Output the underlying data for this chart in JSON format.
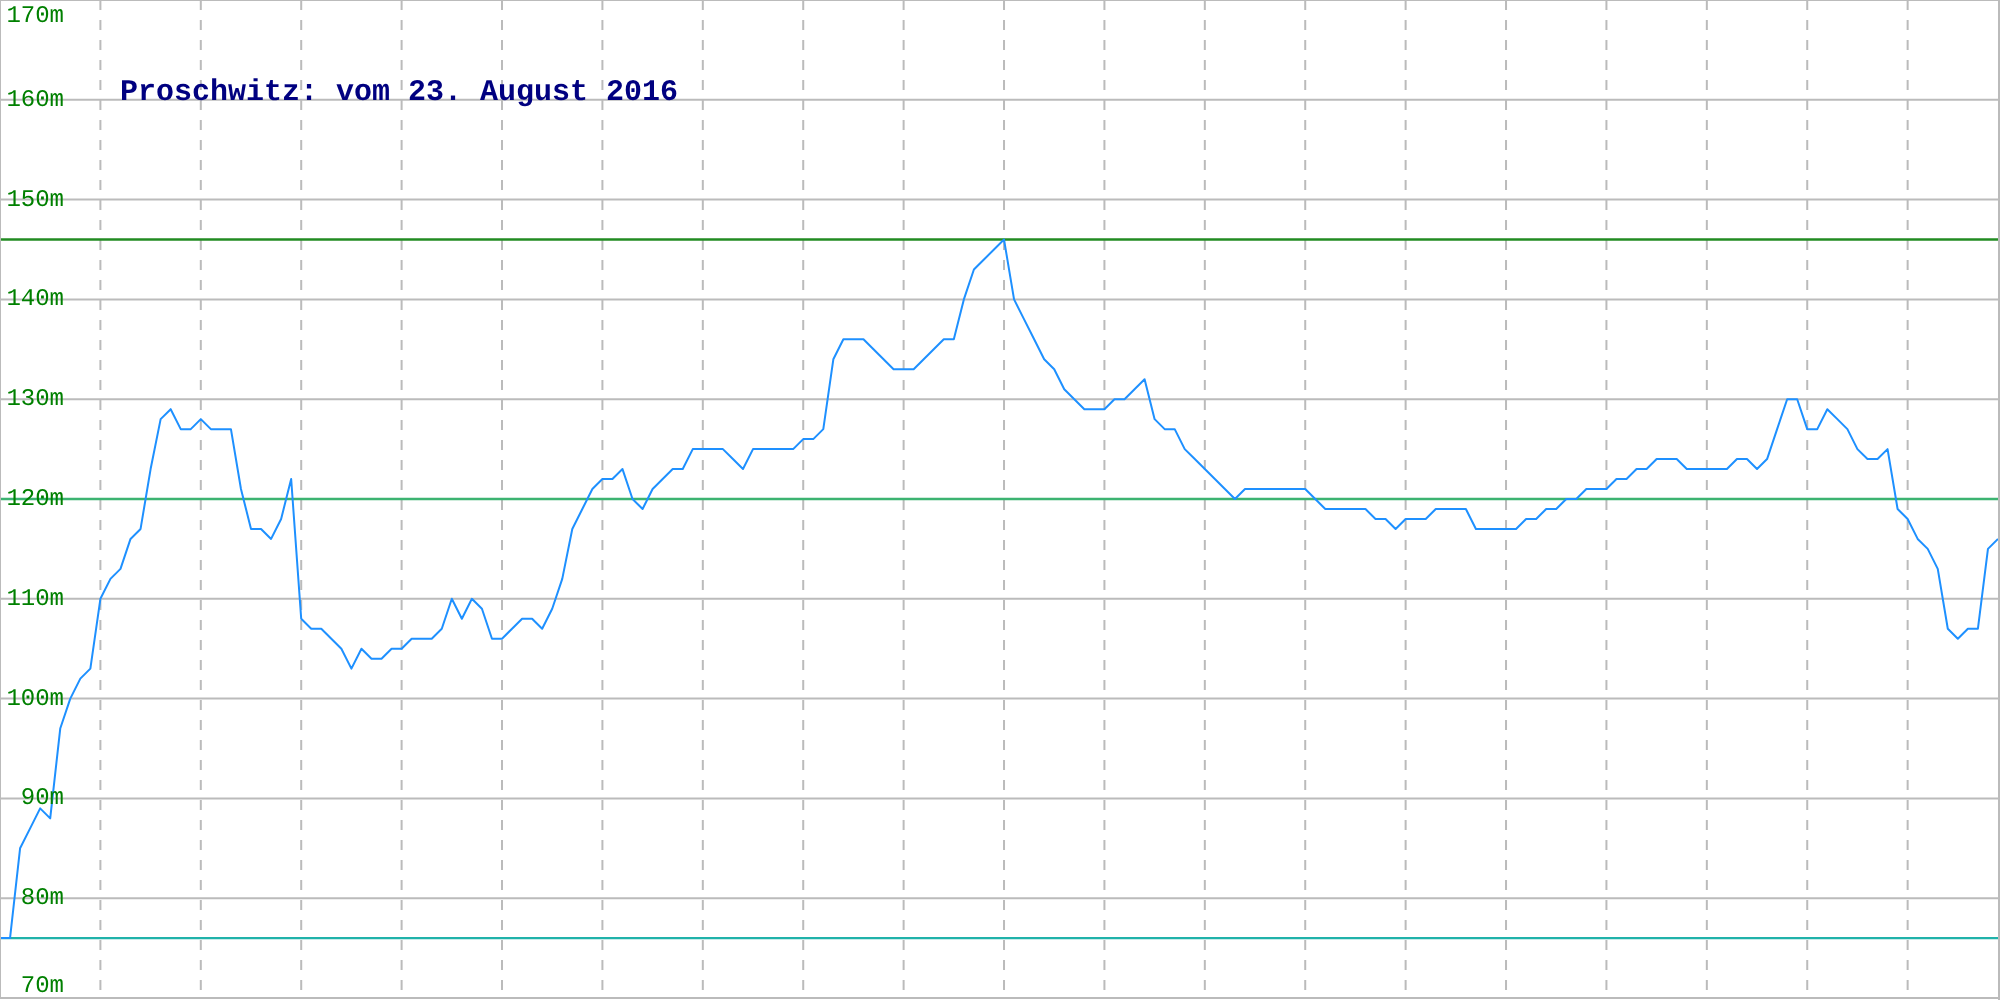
{
  "chart_data": {
    "type": "line",
    "title": "Proschwitz: vom 23. August 2016",
    "categories": [
      null,
      null,
      null,
      null,
      null,
      null,
      null,
      null,
      null,
      null,
      null,
      null,
      null,
      null,
      null,
      null,
      null,
      null,
      null,
      null,
      null,
      null,
      null,
      null,
      null,
      null,
      null,
      null,
      null,
      null,
      null,
      null,
      null,
      null,
      null,
      null,
      null,
      null,
      null,
      null,
      null,
      null,
      null,
      null,
      null,
      null,
      null,
      null,
      null,
      null,
      null,
      null,
      null,
      null,
      null,
      null,
      null,
      null,
      null,
      null,
      null,
      null,
      null,
      null,
      null,
      null,
      null,
      null,
      null,
      null,
      null,
      null,
      null,
      null,
      null,
      null,
      null,
      null,
      null,
      null,
      null,
      null,
      null,
      null,
      null,
      null,
      null,
      null,
      null,
      null,
      null,
      null,
      null,
      null,
      null,
      null,
      null,
      null,
      null,
      null,
      null,
      null,
      null,
      null,
      null,
      null,
      null,
      null,
      null,
      null,
      null,
      null,
      null,
      null,
      null,
      null,
      null,
      null,
      null,
      null,
      null,
      null,
      null,
      null,
      null,
      null,
      null,
      null,
      null,
      null,
      null,
      null,
      null,
      null,
      null,
      null,
      null,
      null,
      null,
      null,
      null,
      null,
      null,
      null,
      null,
      null,
      null,
      null,
      null,
      null,
      null,
      null,
      null,
      null,
      null,
      null,
      null,
      null,
      null,
      null,
      null,
      null,
      null,
      null,
      null,
      null,
      null,
      null,
      null,
      null,
      null,
      null,
      null,
      null,
      null,
      null,
      null,
      null,
      null,
      null,
      null,
      null,
      null,
      null,
      null,
      null,
      null,
      null,
      null,
      null,
      null,
      null,
      null,
      null,
      null,
      null,
      null,
      null,
      null,
      null
    ],
    "color": "#1e90ff",
    "values": [
      76,
      76,
      85,
      87,
      89,
      88,
      97,
      100,
      102,
      103,
      110,
      112,
      113,
      116,
      117,
      123,
      128,
      129,
      127,
      127,
      128,
      127,
      127,
      127,
      121,
      117,
      117,
      116,
      118,
      122,
      108,
      107,
      107,
      106,
      105,
      103,
      105,
      104,
      104,
      105,
      105,
      106,
      106,
      106,
      107,
      110,
      108,
      110,
      109,
      106,
      106,
      107,
      108,
      108,
      107,
      109,
      112,
      117,
      119,
      121,
      122,
      122,
      123,
      120,
      119,
      121,
      122,
      123,
      123,
      125,
      125,
      125,
      125,
      124,
      123,
      125,
      125,
      125,
      125,
      125,
      126,
      126,
      127,
      134,
      136,
      136,
      136,
      135,
      134,
      133,
      133,
      133,
      134,
      135,
      136,
      136,
      140,
      143,
      144,
      145,
      146,
      140,
      138,
      136,
      134,
      133,
      131,
      130,
      129,
      129,
      129,
      130,
      130,
      131,
      132,
      128,
      127,
      127,
      125,
      124,
      123,
      122,
      121,
      120,
      121,
      121,
      121,
      121,
      121,
      121,
      121,
      120,
      119,
      119,
      119,
      119,
      119,
      118,
      118,
      117,
      118,
      118,
      118,
      119,
      119,
      119,
      119,
      117,
      117,
      117,
      117,
      117,
      118,
      118,
      119,
      119,
      120,
      120,
      121,
      121,
      121,
      122,
      122,
      123,
      123,
      124,
      124,
      124,
      123,
      123,
      123,
      123,
      123,
      124,
      124,
      123,
      124,
      127,
      130,
      130,
      127,
      127,
      129,
      128,
      127,
      125,
      124,
      124,
      125,
      119,
      118,
      116,
      115,
      113,
      107,
      106,
      107,
      107,
      115,
      116
    ],
    "ylim": [
      70,
      170
    ],
    "yticks": [
      {
        "value": 70,
        "label": "70m"
      },
      {
        "value": 80,
        "label": "80m"
      },
      {
        "value": 90,
        "label": "90m"
      },
      {
        "value": 100,
        "label": "100m"
      },
      {
        "value": 110,
        "label": "110m"
      },
      {
        "value": 120,
        "label": "120m"
      },
      {
        "value": 130,
        "label": "130m"
      },
      {
        "value": 140,
        "label": "140m"
      },
      {
        "value": 150,
        "label": "150m"
      },
      {
        "value": 160,
        "label": "160m"
      },
      {
        "value": 170,
        "label": "170m"
      }
    ],
    "grid": true,
    "ref_lines": [
      {
        "axis": "y",
        "value": 146,
        "color": "#228b22"
      },
      {
        "axis": "y",
        "value": 120,
        "color": "#3cb371"
      },
      {
        "axis": "y",
        "value": 76,
        "color": "#20b2aa"
      }
    ]
  }
}
